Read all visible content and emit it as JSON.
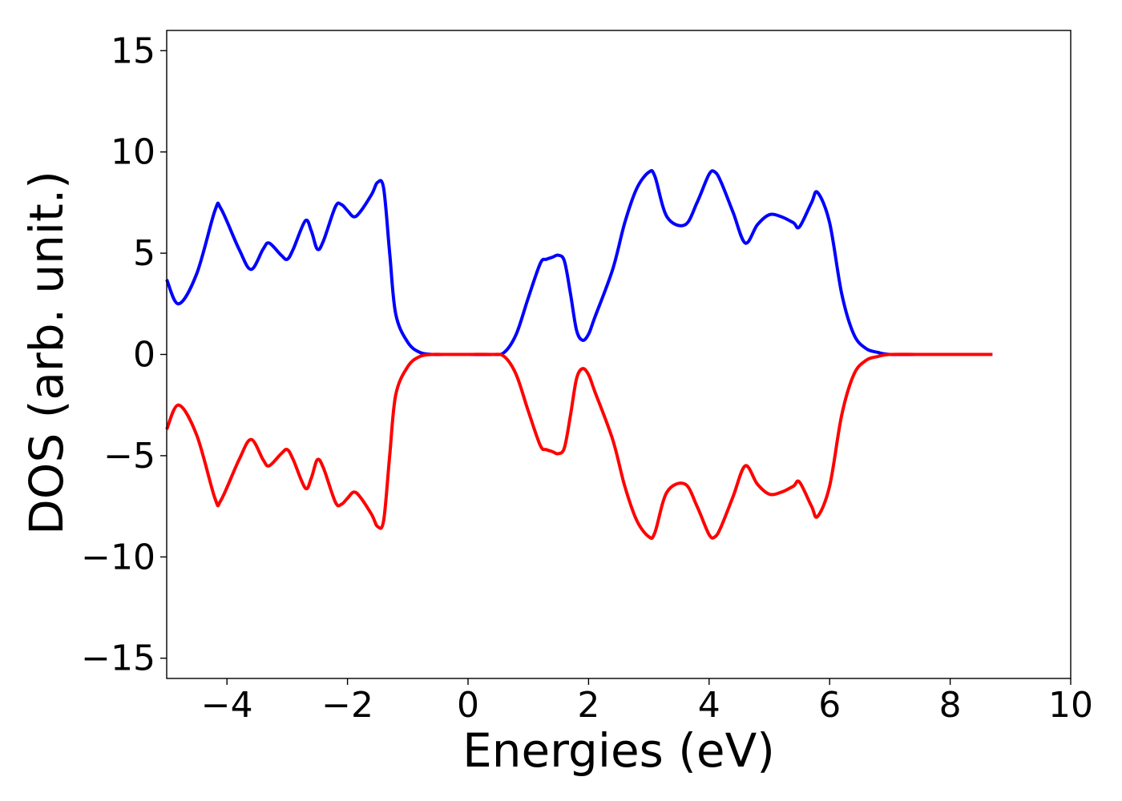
{
  "chart_data": {
    "type": "line",
    "title": "",
    "xlabel": "Energies (eV)",
    "ylabel": "DOS (arb. unit.)",
    "xlim": [
      -5,
      10
    ],
    "ylim": [
      -16,
      16
    ],
    "xticks": [
      -4,
      -2,
      0,
      2,
      4,
      6,
      8,
      10
    ],
    "xtick_labels": [
      "−4",
      "−2",
      "0",
      "2",
      "4",
      "6",
      "8",
      "10"
    ],
    "yticks": [
      -15,
      -10,
      -5,
      0,
      5,
      10,
      15
    ],
    "ytick_labels": [
      "−15",
      "−10",
      "−5",
      "0",
      "5",
      "10",
      "15"
    ],
    "grid": false,
    "legend": false,
    "series": [
      {
        "color": "#0000ff",
        "x": [
          -5.0,
          -4.8,
          -4.5,
          -4.2,
          -4.1,
          -3.8,
          -3.6,
          -3.4,
          -3.3,
          -3.1,
          -3.0,
          -2.9,
          -2.7,
          -2.6,
          -2.5,
          -2.4,
          -2.2,
          -2.1,
          -2.0,
          -1.9,
          -1.8,
          -1.6,
          -1.5,
          -1.4,
          -1.3,
          -1.2,
          -1.0,
          -0.8,
          -0.6,
          -0.4,
          0.0,
          0.4,
          0.6,
          0.8,
          1.0,
          1.2,
          1.3,
          1.4,
          1.5,
          1.6,
          1.7,
          1.8,
          1.9,
          2.0,
          2.1,
          2.4,
          2.6,
          2.8,
          3.0,
          3.1,
          3.3,
          3.6,
          3.8,
          4.0,
          4.1,
          4.2,
          4.4,
          4.6,
          4.8,
          5.0,
          5.2,
          5.4,
          5.5,
          5.7,
          5.8,
          6.0,
          6.2,
          6.4,
          6.6,
          6.8,
          7.0,
          7.5,
          8.0,
          8.7
        ],
        "y": [
          3.7,
          2.5,
          4.0,
          7.1,
          7.2,
          5.2,
          4.2,
          5.2,
          5.5,
          4.9,
          4.7,
          5.2,
          6.6,
          6.1,
          5.2,
          5.6,
          7.3,
          7.4,
          7.1,
          6.8,
          7.0,
          7.9,
          8.5,
          8.2,
          5.0,
          2.0,
          0.6,
          0.1,
          0.0,
          0.0,
          0.0,
          0.0,
          0.1,
          1.0,
          2.8,
          4.5,
          4.7,
          4.8,
          4.9,
          4.6,
          3.0,
          1.2,
          0.7,
          1.0,
          1.8,
          4.2,
          6.5,
          8.2,
          9.0,
          8.8,
          6.8,
          6.4,
          7.5,
          8.9,
          9.0,
          8.5,
          7.0,
          5.5,
          6.4,
          6.9,
          6.8,
          6.5,
          6.3,
          7.5,
          8.0,
          6.5,
          3.0,
          1.0,
          0.3,
          0.1,
          0.0,
          0.0,
          0.0,
          0.0
        ]
      },
      {
        "color": "#ff0000",
        "x": [
          -5.0,
          -4.8,
          -4.5,
          -4.2,
          -4.1,
          -3.8,
          -3.6,
          -3.4,
          -3.3,
          -3.1,
          -3.0,
          -2.9,
          -2.7,
          -2.6,
          -2.5,
          -2.4,
          -2.2,
          -2.1,
          -2.0,
          -1.9,
          -1.8,
          -1.6,
          -1.5,
          -1.4,
          -1.3,
          -1.2,
          -1.0,
          -0.8,
          -0.6,
          -0.4,
          0.0,
          0.4,
          0.6,
          0.8,
          1.0,
          1.2,
          1.3,
          1.4,
          1.5,
          1.6,
          1.7,
          1.8,
          1.9,
          2.0,
          2.1,
          2.4,
          2.6,
          2.8,
          3.0,
          3.1,
          3.3,
          3.6,
          3.8,
          4.0,
          4.1,
          4.2,
          4.4,
          4.6,
          4.8,
          5.0,
          5.2,
          5.4,
          5.5,
          5.7,
          5.8,
          6.0,
          6.2,
          6.4,
          6.6,
          6.8,
          7.0,
          7.5,
          8.0,
          8.7
        ],
        "y": [
          -3.7,
          -2.5,
          -4.0,
          -7.1,
          -7.2,
          -5.2,
          -4.2,
          -5.2,
          -5.5,
          -4.9,
          -4.7,
          -5.2,
          -6.6,
          -6.1,
          -5.2,
          -5.6,
          -7.3,
          -7.4,
          -7.1,
          -6.8,
          -7.0,
          -7.9,
          -8.5,
          -8.2,
          -5.0,
          -2.0,
          -0.6,
          -0.1,
          0.0,
          0.0,
          0.0,
          0.0,
          -0.1,
          -1.0,
          -2.8,
          -4.5,
          -4.7,
          -4.8,
          -4.9,
          -4.6,
          -3.0,
          -1.2,
          -0.7,
          -1.0,
          -1.8,
          -4.2,
          -6.5,
          -8.2,
          -9.0,
          -8.8,
          -6.8,
          -6.4,
          -7.5,
          -8.9,
          -9.0,
          -8.5,
          -7.0,
          -5.5,
          -6.4,
          -6.9,
          -6.8,
          -6.5,
          -6.3,
          -7.5,
          -8.0,
          -6.5,
          -3.0,
          -1.0,
          -0.3,
          -0.1,
          0.0,
          0.0,
          0.0,
          0.0
        ]
      }
    ]
  }
}
